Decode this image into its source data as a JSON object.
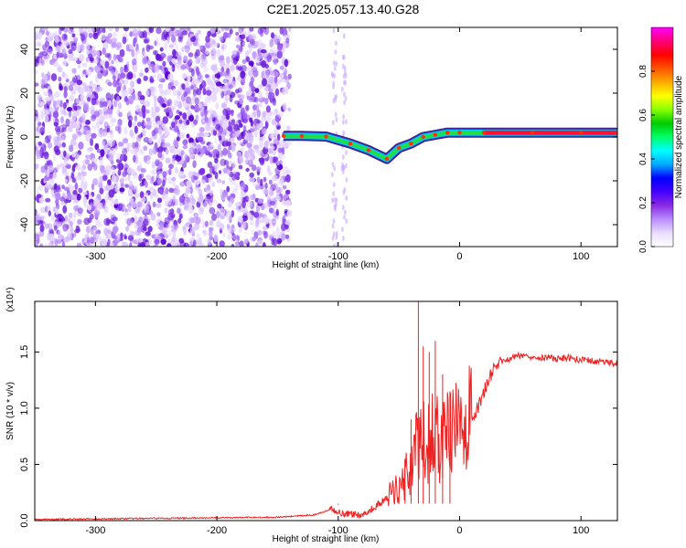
{
  "title": "C2E1.2025.057.13.40.G28",
  "chart_data": [
    {
      "type": "heatmap",
      "xlabel": "Height of straight line (km)",
      "ylabel": "Frequency (Hz)",
      "xlim": [
        -350,
        130
      ],
      "ylim": [
        -50,
        50
      ],
      "x_ticks": [
        -300,
        -200,
        -100,
        0,
        100
      ],
      "y_ticks": [
        -40,
        -20,
        0,
        20,
        40
      ],
      "colorbar": {
        "label": "Normalized spectral amplitude",
        "range": [
          0.0,
          1.0
        ],
        "ticks": [
          "0.0",
          "0.2",
          "0.4",
          "0.6",
          "0.8"
        ],
        "colors": [
          "#ffffff",
          "#e9dcff",
          "#b98cff",
          "#8a2be2",
          "#4400ff",
          "#0000ff",
          "#00aaff",
          "#00ffff",
          "#00ff66",
          "#00cc00",
          "#88ff00",
          "#ffff00",
          "#ffaa00",
          "#ff5500",
          "#ff0000",
          "#ff0077",
          "#ff00ff"
        ]
      },
      "ridge": [
        {
          "x": -145,
          "y": 0.5
        },
        {
          "x": -130,
          "y": 0.5
        },
        {
          "x": -110,
          "y": 0.2
        },
        {
          "x": -90,
          "y": -3
        },
        {
          "x": -75,
          "y": -6
        },
        {
          "x": -60,
          "y": -10
        },
        {
          "x": -50,
          "y": -5
        },
        {
          "x": -40,
          "y": -3
        },
        {
          "x": -30,
          "y": 0
        },
        {
          "x": -20,
          "y": 1
        },
        {
          "x": -10,
          "y": 2
        },
        {
          "x": 0,
          "y": 2
        },
        {
          "x": 20,
          "y": 2
        },
        {
          "x": 60,
          "y": 2
        },
        {
          "x": 100,
          "y": 2
        },
        {
          "x": 130,
          "y": 2
        }
      ]
    },
    {
      "type": "line",
      "xlabel": "Height of straight line (km)",
      "ylabel": "SNR (10 * v/v)",
      "scale_label": "(x10⁴)",
      "xlim": [
        -350,
        130
      ],
      "ylim": [
        0,
        1.95
      ],
      "x_ticks": [
        -300,
        -200,
        -100,
        0,
        100
      ],
      "y_ticks": [
        "0.0",
        "0.5",
        "1.0",
        "1.5"
      ],
      "series": [
        {
          "color": "#ee2222",
          "x": [
            -350,
            -300,
            -250,
            -200,
            -150,
            -120,
            -105,
            -95,
            -80,
            -70,
            -60,
            -50,
            -45,
            -40,
            -35,
            -30,
            -25,
            -20,
            -15,
            -10,
            -5,
            0,
            5,
            10,
            15,
            20,
            25,
            30,
            40,
            50,
            60,
            70,
            80,
            90,
            100,
            110,
            120,
            130
          ],
          "y": [
            0.01,
            0.015,
            0.02,
            0.025,
            0.03,
            0.05,
            0.1,
            0.06,
            0.05,
            0.12,
            0.2,
            0.3,
            0.38,
            0.5,
            0.65,
            0.7,
            0.72,
            0.75,
            0.72,
            0.75,
            0.78,
            0.82,
            0.87,
            0.92,
            1.0,
            1.15,
            1.28,
            1.38,
            1.44,
            1.47,
            1.46,
            1.45,
            1.44,
            1.45,
            1.43,
            1.42,
            1.41,
            1.4
          ]
        }
      ],
      "spikes": [
        {
          "x": -34,
          "y": 1.95
        },
        {
          "x": -30,
          "y": 1.55
        },
        {
          "x": -25,
          "y": 1.5
        },
        {
          "x": -20,
          "y": 1.6
        },
        {
          "x": -14,
          "y": 1.3
        },
        {
          "x": -8,
          "y": 1.15
        },
        {
          "x": -40,
          "y": 0.9
        },
        {
          "x": -45,
          "y": 0.55
        },
        {
          "x": -100,
          "y": 0.14
        }
      ]
    }
  ]
}
